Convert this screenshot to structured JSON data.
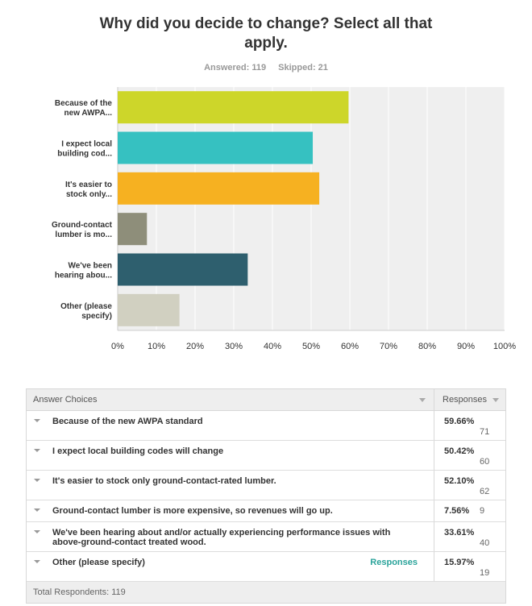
{
  "header": {
    "title": "Why did you decide to change? Select all that apply.",
    "answered": "Answered: 119",
    "skipped": "Skipped: 21"
  },
  "chart_data": {
    "type": "bar",
    "orientation": "horizontal",
    "categories": [
      [
        "Because of the",
        "new AWPA..."
      ],
      [
        "I expect local",
        "building cod..."
      ],
      [
        "It's easier to",
        "stock only..."
      ],
      [
        "Ground-contact",
        "lumber is mo..."
      ],
      [
        "We've been",
        "hearing abou..."
      ],
      [
        "Other (please",
        "specify)"
      ]
    ],
    "values": [
      59.66,
      50.42,
      52.1,
      7.56,
      33.61,
      15.97
    ],
    "colors": [
      "#cdd62a",
      "#36c1c1",
      "#f6b121",
      "#8e8e7a",
      "#2e5f6e",
      "#d1d0c1"
    ],
    "xlim": [
      0,
      100
    ],
    "xticks": [
      "0%",
      "10%",
      "20%",
      "30%",
      "40%",
      "50%",
      "60%",
      "70%",
      "80%",
      "90%",
      "100%"
    ],
    "grid": true,
    "plot_background": "#efefef"
  },
  "table": {
    "header_choice": "Answer Choices",
    "header_responses": "Responses",
    "rows": [
      {
        "label": "Because of the new AWPA standard",
        "pct": "59.66%",
        "count": "71",
        "link": ""
      },
      {
        "label": "I expect local building codes will change",
        "pct": "50.42%",
        "count": "60",
        "link": ""
      },
      {
        "label": "It's easier to stock only ground-contact-rated lumber.",
        "pct": "52.10%",
        "count": "62",
        "link": ""
      },
      {
        "label": "Ground-contact lumber is more expensive, so revenues will go up.",
        "pct": "7.56%",
        "count": "9",
        "link": ""
      },
      {
        "label": "We've been hearing about and/or actually experiencing performance issues with above-ground-contact treated wood.",
        "pct": "33.61%",
        "count": "40",
        "link": ""
      },
      {
        "label": "Other (please specify)",
        "pct": "15.97%",
        "count": "19",
        "link": "Responses"
      }
    ],
    "footer": "Total Respondents: 119"
  }
}
